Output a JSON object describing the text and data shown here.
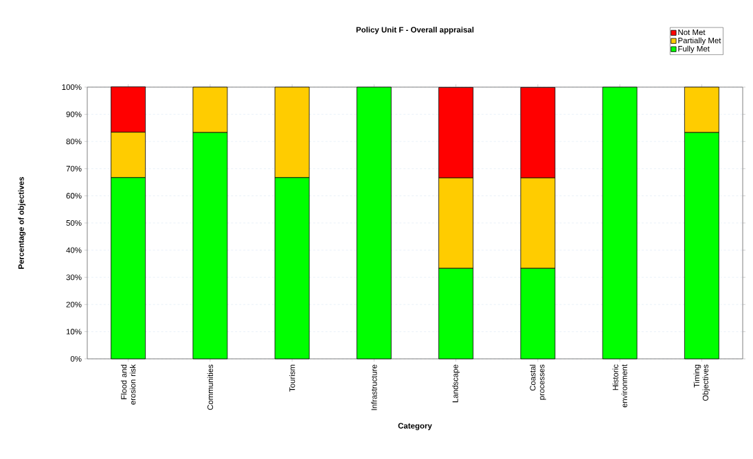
{
  "chart_data": {
    "type": "bar",
    "title": "Policy Unit F - Overall appraisal",
    "xlabel": "Category",
    "ylabel": "Percentage of objectives",
    "categories": [
      "Flood and erosion risk",
      "Communities",
      "Tourism",
      "Infrastructure",
      "Landscape",
      "Coastal processes",
      "Historic environment",
      "Timing Objectives"
    ],
    "stacked": true,
    "series": [
      {
        "name": "Fully Met",
        "color": "#00ff00",
        "values": [
          66.7,
          83.3,
          66.7,
          100,
          33.3,
          33.3,
          100,
          83.3
        ]
      },
      {
        "name": "Partially Met",
        "color": "#ffcc00",
        "values": [
          16.7,
          16.7,
          33.3,
          0,
          33.3,
          33.3,
          0,
          16.7
        ]
      },
      {
        "name": "Not Met",
        "color": "#ff0000",
        "values": [
          16.7,
          0,
          0,
          0,
          33.3,
          33.3,
          0,
          0
        ]
      }
    ],
    "ylim": [
      0,
      100
    ],
    "yticks": [
      {
        "value": 0,
        "label": "0%"
      },
      {
        "value": 10,
        "label": "10%"
      },
      {
        "value": 20,
        "label": "20%"
      },
      {
        "value": 30,
        "label": "30%"
      },
      {
        "value": 40,
        "label": "40%"
      },
      {
        "value": 50,
        "label": "50%"
      },
      {
        "value": 60,
        "label": "60%"
      },
      {
        "value": 70,
        "label": "70%"
      },
      {
        "value": 80,
        "label": "80%"
      },
      {
        "value": 90,
        "label": "90%"
      },
      {
        "value": 100,
        "label": "100%"
      }
    ],
    "grid": "y",
    "legend": "top right"
  }
}
